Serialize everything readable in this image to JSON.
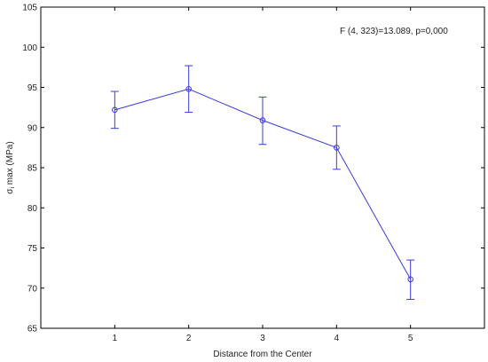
{
  "chart_data": {
    "type": "line",
    "title": "",
    "annotation": "F (4, 323)=13.089, p=0,000",
    "xlabel": "Distance from the Center",
    "ylabel": "σ",
    "ylabel_sub": "i",
    "ylabel_suffix": " max (MPa)",
    "x": [
      1,
      2,
      3,
      4,
      5
    ],
    "xlim": [
      0,
      6
    ],
    "ylim": [
      65,
      105
    ],
    "yticks": [
      65,
      70,
      75,
      80,
      85,
      90,
      95,
      100,
      105
    ],
    "series": [
      {
        "values": [
          92.2,
          94.8,
          90.9,
          87.5,
          71.1
        ],
        "error_low": [
          89.9,
          91.9,
          87.9,
          84.8,
          68.6
        ],
        "error_high": [
          94.5,
          97.7,
          93.8,
          90.2,
          73.5
        ]
      }
    ],
    "grid": false,
    "colors": {
      "series": "#3b3bdc",
      "axis": "#000000"
    }
  }
}
